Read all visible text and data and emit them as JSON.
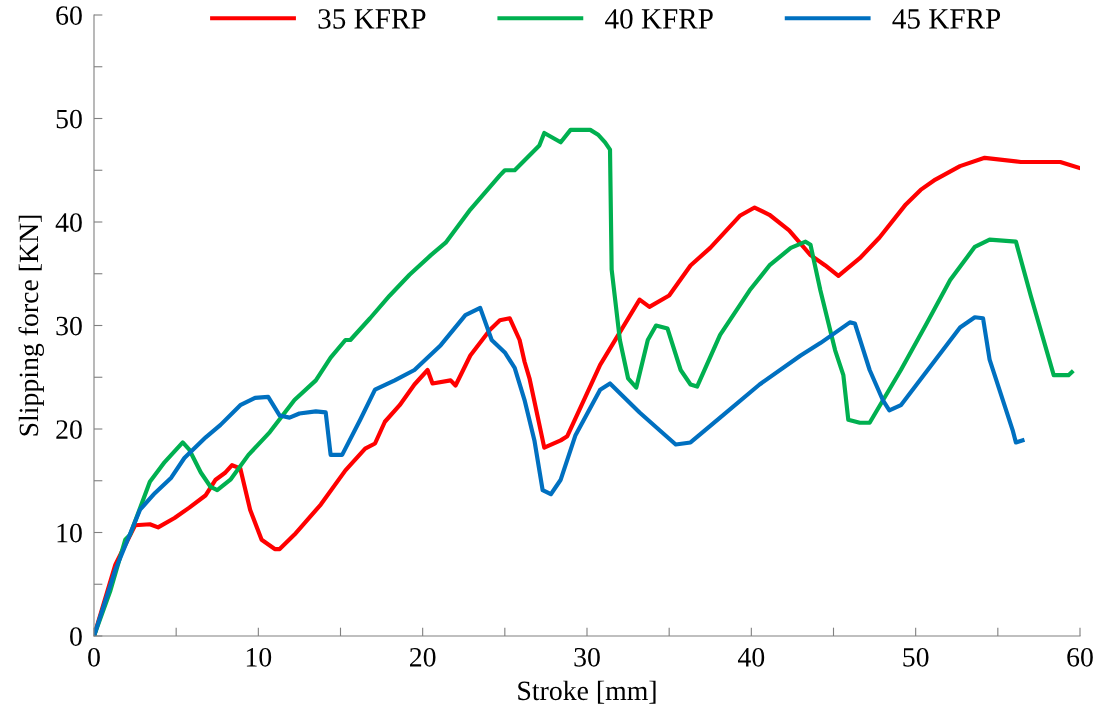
{
  "chart_data": {
    "type": "line",
    "xlabel": "Stroke [mm]",
    "ylabel": "Slipping force [KN]",
    "xlim": [
      0,
      60
    ],
    "ylim": [
      0,
      60
    ],
    "xticks": [
      0,
      {
        "value": 5,
        "label": null
      },
      10,
      {
        "value": 15,
        "label": null
      },
      20,
      {
        "value": 25,
        "label": null
      },
      30,
      {
        "value": 35,
        "label": null
      },
      40,
      {
        "value": 45,
        "label": null
      },
      50,
      {
        "value": 55,
        "label": null
      },
      60
    ],
    "yticks": [
      0,
      {
        "value": 5,
        "label": null
      },
      10,
      {
        "value": 15,
        "label": null
      },
      20,
      {
        "value": 25,
        "label": null
      },
      30,
      {
        "value": 35,
        "label": null
      },
      40,
      {
        "value": 45,
        "label": null
      },
      50,
      {
        "value": 55,
        "label": null
      },
      60
    ],
    "grid": false,
    "legend": "top",
    "marker": "none",
    "line_style": "solid",
    "series": [
      {
        "name": "35 KFRP",
        "color": "#ff0000",
        "x": [
          0,
          1.3,
          2.5,
          3.4,
          3.9,
          4.9,
          5.8,
          6.8,
          7.4,
          8.0,
          8.4,
          8.9,
          9.5,
          10.2,
          11.0,
          11.3,
          12.2,
          13.8,
          15.3,
          16.5,
          17.1,
          17.7,
          18.6,
          19.5,
          20.3,
          20.6,
          21.7,
          22.0,
          22.9,
          24.1,
          24.7,
          25.3,
          25.9,
          26.2,
          26.5,
          27.4,
          28.4,
          28.8,
          30.8,
          33.2,
          33.8,
          35.0,
          36.3,
          37.5,
          39.3,
          40.2,
          41.1,
          42.3,
          43.6,
          44.5,
          45.3,
          46.6,
          47.8,
          49.4,
          50.3,
          51.2,
          52.7,
          54.2,
          56.4,
          58.8,
          60
        ],
        "values": [
          0,
          6.9,
          10.7,
          10.8,
          10.5,
          11.4,
          12.4,
          13.6,
          15.1,
          15.8,
          16.5,
          16.2,
          12.2,
          9.3,
          8.4,
          8.4,
          9.8,
          12.7,
          16.0,
          18.1,
          18.6,
          20.7,
          22.3,
          24.3,
          25.7,
          24.4,
          24.7,
          24.2,
          27.1,
          29.6,
          30.5,
          30.7,
          28.6,
          26.5,
          24.9,
          18.2,
          18.9,
          19.3,
          26.2,
          32.5,
          31.8,
          32.9,
          35.8,
          37.5,
          40.6,
          41.4,
          40.7,
          39.2,
          36.8,
          35.8,
          34.8,
          36.5,
          38.5,
          41.7,
          43.1,
          44.1,
          45.4,
          46.2,
          45.8,
          45.8,
          45.2
        ]
      },
      {
        "name": "40 KFRP",
        "color": "#00b050",
        "x": [
          0,
          1.0,
          1.9,
          2.2,
          3.4,
          4.3,
          5.4,
          5.8,
          6.5,
          7.1,
          7.5,
          8.3,
          9.4,
          10.7,
          12.2,
          13.5,
          14.4,
          15.3,
          15.6,
          16.8,
          18.0,
          19.2,
          20.5,
          21.4,
          22.9,
          24.7,
          25.0,
          25.6,
          27.1,
          27.4,
          28.4,
          29.0,
          30.2,
          30.7,
          31.1,
          31.4,
          31.5,
          32.0,
          32.5,
          33.0,
          33.7,
          34.2,
          34.9,
          35.7,
          36.3,
          36.7,
          38.1,
          39.9,
          41.1,
          42.4,
          43.3,
          43.6,
          44.2,
          45.1,
          45.6,
          45.9,
          46.6,
          47.2,
          49.1,
          50.6,
          52.1,
          53.6,
          54.5,
          56.1,
          57.0,
          58.4,
          59.3,
          59.5
        ],
        "values": [
          0,
          4.4,
          9.3,
          9.8,
          14.9,
          16.8,
          18.7,
          18.0,
          15.8,
          14.4,
          14.1,
          15.1,
          17.5,
          19.7,
          22.8,
          24.7,
          26.9,
          28.6,
          28.6,
          30.7,
          32.9,
          34.9,
          36.8,
          38.0,
          41.2,
          44.5,
          45.0,
          45.0,
          47.4,
          48.6,
          47.7,
          48.9,
          48.9,
          48.4,
          47.7,
          47.0,
          35.4,
          28.6,
          24.9,
          24.0,
          28.6,
          30.0,
          29.7,
          25.7,
          24.3,
          24.1,
          29.1,
          33.4,
          35.8,
          37.5,
          38.1,
          37.8,
          33.4,
          27.6,
          25.2,
          20.9,
          20.6,
          20.6,
          25.7,
          30.0,
          34.4,
          37.6,
          38.3,
          38.1,
          32.9,
          25.2,
          25.2,
          25.5
        ]
      },
      {
        "name": "45 KFRP",
        "color": "#0070c0",
        "x": [
          0,
          1.3,
          2.8,
          3.7,
          4.7,
          5.5,
          6.8,
          7.7,
          8.9,
          9.8,
          10.6,
          11.3,
          11.9,
          12.5,
          13.5,
          14.1,
          14.4,
          15.1,
          16.2,
          17.1,
          18.3,
          19.5,
          21.1,
          22.6,
          23.5,
          24.2,
          25.0,
          25.6,
          26.2,
          26.8,
          27.3,
          27.8,
          28.4,
          29.3,
          30.8,
          31.4,
          33.2,
          34.4,
          35.4,
          36.3,
          38.1,
          40.5,
          43.0,
          44.2,
          46.0,
          46.3,
          47.2,
          48.0,
          48.4,
          49.1,
          52.7,
          53.6,
          54.1,
          54.5,
          55.9,
          56.1,
          56.5
        ],
        "values": [
          0,
          6.4,
          12.2,
          13.8,
          15.3,
          17.2,
          19.2,
          20.4,
          22.3,
          23.0,
          23.1,
          21.3,
          21.1,
          21.5,
          21.7,
          21.6,
          17.5,
          17.5,
          20.9,
          23.8,
          24.7,
          25.7,
          28.1,
          31.0,
          31.7,
          28.6,
          27.4,
          25.9,
          22.8,
          18.9,
          14.1,
          13.7,
          15.1,
          19.4,
          23.8,
          24.4,
          21.6,
          19.9,
          18.5,
          18.7,
          21.1,
          24.3,
          27.1,
          28.3,
          30.3,
          30.2,
          25.7,
          22.8,
          21.8,
          22.3,
          29.8,
          30.8,
          30.7,
          26.7,
          19.9,
          18.7,
          18.9
        ]
      }
    ]
  }
}
